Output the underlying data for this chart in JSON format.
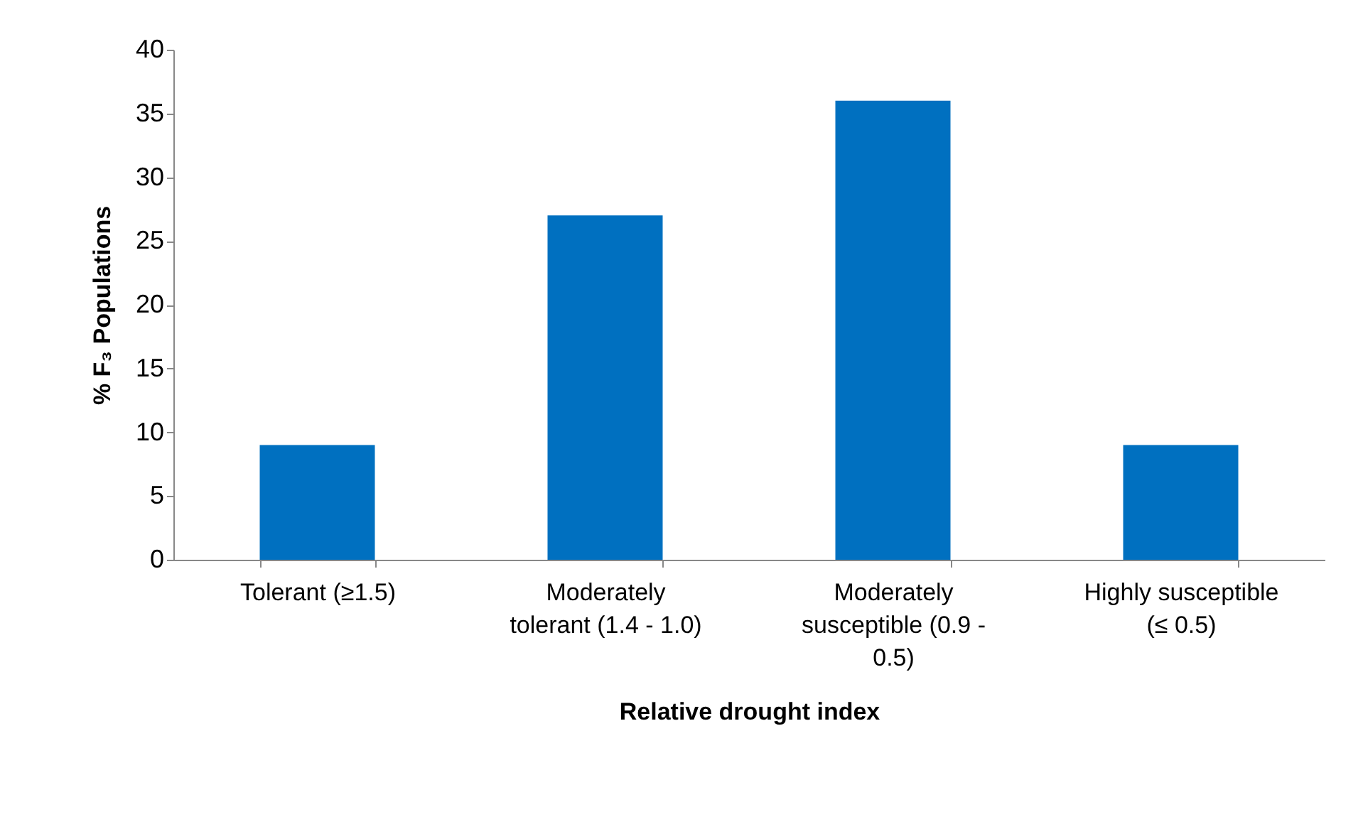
{
  "chart_data": {
    "type": "bar",
    "xlabel": "Relative drought index",
    "ylabel": "% F₃ Populations",
    "categories": [
      "Tolerant (≥1.5)",
      "Moderately tolerant (1.4 - 1.0)",
      "Moderately susceptible (0.9 - 0.5)",
      "Highly susceptible (≤ 0.5)"
    ],
    "values": [
      9,
      27,
      36,
      9
    ],
    "color": "#0070c0",
    "ylim": [
      0,
      40
    ],
    "yticks": [
      0,
      5,
      10,
      15,
      20,
      25,
      30,
      35,
      40
    ],
    "grid": false
  }
}
